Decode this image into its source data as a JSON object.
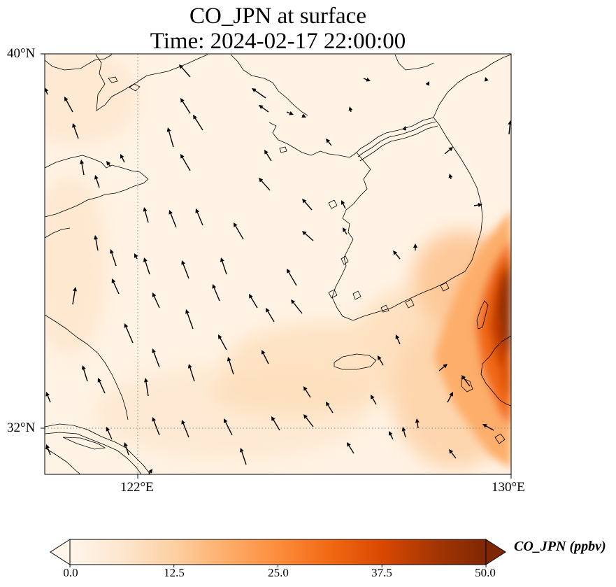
{
  "title": {
    "line1": "CO_JPN at surface",
    "line2": "Time: 2024-02-17 22:00:00"
  },
  "axes": {
    "lat_ticks": [
      {
        "value": 40,
        "label": "40°N"
      },
      {
        "value": 32,
        "label": "32°N"
      }
    ],
    "lon_ticks": [
      {
        "value": 122,
        "label": "122°E"
      },
      {
        "value": 130,
        "label": "130°E"
      }
    ],
    "extent": {
      "lon_min": 120,
      "lon_max": 130,
      "lat_min": 31,
      "lat_max": 40
    }
  },
  "colorbar": {
    "label": "CO_JPN (ppbv)",
    "ticks": [
      "0.0",
      "12.5",
      "25.0",
      "37.5",
      "50.0"
    ],
    "range": [
      0,
      50
    ],
    "extend": "both",
    "colormap": [
      "#fff5eb",
      "#fee6ce",
      "#fdd0a2",
      "#fdae6b",
      "#fd8d3c",
      "#f16913",
      "#d94801",
      "#a63603",
      "#7f2704"
    ]
  },
  "gridlines": {
    "style": "dotted",
    "color": "#888888"
  },
  "wind_vectors": {
    "shown": true,
    "color": "#000000"
  }
}
